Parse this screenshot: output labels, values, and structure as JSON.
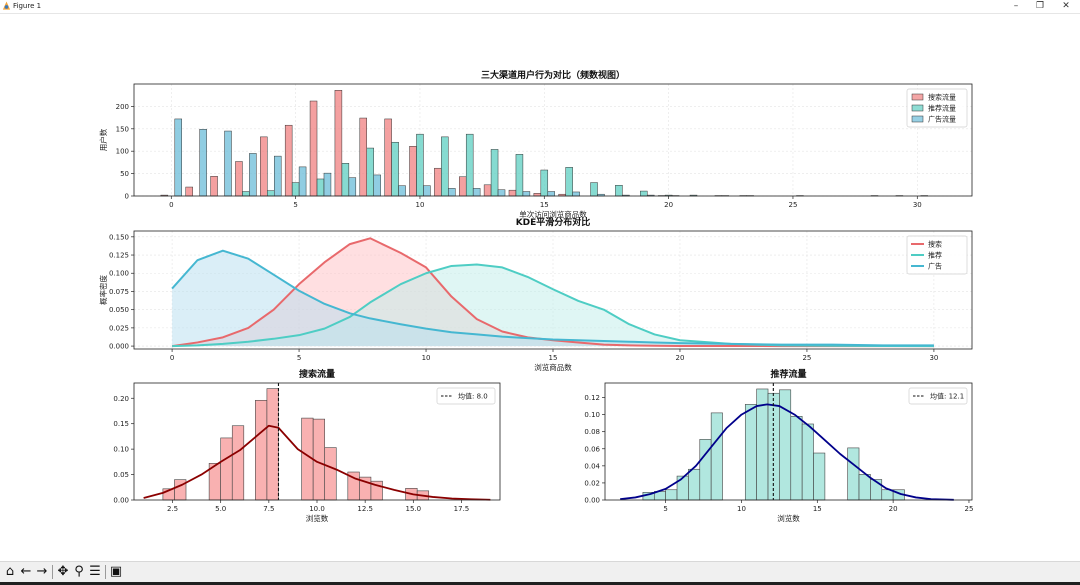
{
  "window": {
    "title": "Figure 1"
  },
  "toolbar": {
    "buttons": [
      {
        "name": "home-icon",
        "glyph": "⌂"
      },
      {
        "name": "back-icon",
        "glyph": "←"
      },
      {
        "name": "forward-icon",
        "glyph": "→"
      },
      {
        "name": "pan-icon",
        "glyph": "✥"
      },
      {
        "name": "zoom-icon",
        "glyph": "⚲"
      },
      {
        "name": "configure-icon",
        "glyph": "☰"
      },
      {
        "name": "save-icon",
        "glyph": "▣"
      }
    ]
  },
  "chart_data": [
    {
      "type": "bar",
      "title": "三大渠道用户行为对比（频数视图）",
      "xlabel": "单次访问浏览商品数",
      "ylabel": "用户数",
      "xlim": [
        -1.5,
        32.2
      ],
      "ylim": [
        0,
        250
      ],
      "xticks": [
        0,
        5,
        10,
        15,
        20,
        25,
        30
      ],
      "yticks": [
        0,
        50,
        100,
        150,
        200
      ],
      "grid": true,
      "legend": "top-right",
      "x": [
        0,
        1,
        2,
        3,
        4,
        5,
        6,
        7,
        8,
        9,
        10,
        11,
        12,
        13,
        14,
        15,
        16,
        17,
        18,
        19,
        20,
        21,
        22,
        23,
        24,
        25,
        26,
        27,
        28,
        29,
        30
      ],
      "series": [
        {
          "name": "搜索流量",
          "color": "#f08080",
          "values": [
            2,
            20,
            44,
            77,
            132,
            158,
            212,
            236,
            174,
            172,
            111,
            62,
            43,
            25,
            13,
            6,
            4,
            0,
            0,
            0,
            1,
            0,
            0,
            0,
            0,
            0,
            0,
            0,
            0,
            0,
            0
          ]
        },
        {
          "name": "推荐流量",
          "color": "#5ecfc2",
          "values": [
            0,
            0,
            0,
            10,
            12,
            30,
            38,
            73,
            107,
            120,
            138,
            132,
            138,
            104,
            93,
            58,
            64,
            30,
            24,
            11,
            2,
            2,
            1,
            1,
            0,
            0,
            0,
            0,
            0,
            0,
            0
          ]
        },
        {
          "name": "广告流量",
          "color": "#6bbcd8",
          "values": [
            172,
            149,
            145,
            95,
            89,
            65,
            51,
            41,
            47,
            23,
            23,
            17,
            17,
            14,
            10,
            10,
            9,
            4,
            2,
            2,
            1,
            0,
            1,
            1,
            0,
            1,
            0,
            0,
            1,
            1,
            1
          ]
        }
      ]
    },
    {
      "type": "area",
      "title": "KDE平滑分布对比",
      "xlabel": "浏览商品数",
      "ylabel": "概率密度",
      "xlim": [
        -1.5,
        31.5
      ],
      "ylim": [
        -0.004,
        0.158
      ],
      "xticks": [
        0,
        5,
        10,
        15,
        20,
        25,
        30
      ],
      "yticks": [
        0.0,
        0.025,
        0.05,
        0.075,
        0.1,
        0.125,
        0.15
      ],
      "grid": true,
      "legend": "top-right",
      "x": [
        0,
        1,
        2,
        3,
        4,
        5,
        6,
        7,
        7.8,
        9,
        10,
        11,
        12,
        13,
        14,
        15,
        16,
        17,
        18,
        19,
        20,
        22,
        24,
        26,
        28,
        30
      ],
      "series": [
        {
          "name": "搜索",
          "color": "#e8696c",
          "fill": "#ffc0c4",
          "values": [
            0.0,
            0.005,
            0.012,
            0.025,
            0.05,
            0.085,
            0.115,
            0.14,
            0.148,
            0.128,
            0.108,
            0.068,
            0.037,
            0.02,
            0.012,
            0.008,
            0.005,
            0.002,
            0.001,
            0.0005,
            0.0002,
            0.0001,
            0,
            0,
            0,
            0
          ]
        },
        {
          "name": "推荐",
          "color": "#4ecdc4",
          "fill": "#bfeeea",
          "values": [
            0.0,
            0.001,
            0.003,
            0.006,
            0.01,
            0.015,
            0.024,
            0.04,
            0.06,
            0.085,
            0.1,
            0.11,
            0.112,
            0.108,
            0.095,
            0.078,
            0.062,
            0.05,
            0.03,
            0.016,
            0.008,
            0.003,
            0.001,
            0.0005,
            0.0002,
            0
          ]
        },
        {
          "name": "广告",
          "color": "#45b7d1",
          "fill": "#b6def0",
          "values": [
            0.079,
            0.118,
            0.131,
            0.12,
            0.098,
            0.076,
            0.058,
            0.045,
            0.038,
            0.03,
            0.024,
            0.019,
            0.016,
            0.013,
            0.011,
            0.009,
            0.008,
            0.007,
            0.006,
            0.005,
            0.004,
            0.003,
            0.002,
            0.002,
            0.001,
            0.001
          ]
        }
      ]
    },
    {
      "type": "bar",
      "title": "搜索流量",
      "xlabel": "浏览数",
      "ylabel": "",
      "xlim": [
        0.5,
        19.5
      ],
      "ylim": [
        0,
        0.23
      ],
      "xticks": [
        2.5,
        5.0,
        7.5,
        10.0,
        12.5,
        15.0,
        17.5
      ],
      "yticks": [
        0.0,
        0.05,
        0.1,
        0.15,
        0.2
      ],
      "legend": "top-right",
      "bin_width": 0.6,
      "bins": [
        2.0,
        2.6,
        3.2,
        3.8,
        4.4,
        5.0,
        5.6,
        6.2,
        6.8,
        7.4,
        8.0,
        8.6,
        9.2,
        9.8,
        10.4,
        11.0,
        11.6,
        12.2,
        12.8,
        13.4,
        14.0,
        14.6,
        15.2,
        15.8,
        16.4,
        17.0,
        17.6
      ],
      "values": [
        0.022,
        0.04,
        0,
        0,
        0.072,
        0.122,
        0.146,
        0,
        0.196,
        0.219,
        0,
        0,
        0.161,
        0.159,
        0.103,
        0,
        0.055,
        0.045,
        0.037,
        0,
        0,
        0.023,
        0.018,
        0,
        0,
        0,
        0
      ],
      "kde_x": [
        1,
        2,
        3,
        4,
        5,
        6,
        7,
        7.5,
        8,
        9,
        10,
        11,
        12,
        13,
        14,
        15,
        16,
        17,
        18,
        19
      ],
      "kde_y": [
        0.004,
        0.014,
        0.03,
        0.05,
        0.075,
        0.098,
        0.13,
        0.146,
        0.142,
        0.1,
        0.075,
        0.06,
        0.042,
        0.03,
        0.02,
        0.011,
        0.006,
        0.003,
        0.0015,
        0.0005
      ],
      "kde_color": "#8b0000",
      "bar_color": "#f8a8a8",
      "mean": 8.0,
      "mean_label": "均值: 8.0"
    },
    {
      "type": "bar",
      "title": "推荐流量",
      "xlabel": "浏览数",
      "ylabel": "",
      "xlim": [
        1.0,
        25.2
      ],
      "ylim": [
        0,
        0.137
      ],
      "xticks": [
        5,
        10,
        15,
        20,
        25
      ],
      "yticks": [
        0.0,
        0.02,
        0.04,
        0.06,
        0.08,
        0.1,
        0.12
      ],
      "legend": "top-right",
      "bin_width": 0.75,
      "bins": [
        3.5,
        4.25,
        5.0,
        5.75,
        6.5,
        7.25,
        8.0,
        8.75,
        9.5,
        10.25,
        11.0,
        11.75,
        12.5,
        13.25,
        14.0,
        14.75,
        15.5,
        16.25,
        17.0,
        17.75,
        18.5,
        19.25,
        20.0,
        20.75
      ],
      "values": [
        0.009,
        0.01,
        0.012,
        0.028,
        0.036,
        0.071,
        0.102,
        0,
        0,
        0.112,
        0.13,
        0.125,
        0.129,
        0.098,
        0.089,
        0.055,
        0,
        0,
        0.061,
        0.03,
        0.024,
        0.012,
        0.012,
        0
      ],
      "kde_x": [
        2,
        3,
        4,
        5,
        6,
        7,
        8,
        9,
        10,
        11,
        11.7,
        12.5,
        13.5,
        14.5,
        15.5,
        16.5,
        17.5,
        18.5,
        19.5,
        20.5,
        21.5,
        22.5,
        24
      ],
      "kde_y": [
        0.001,
        0.003,
        0.007,
        0.013,
        0.024,
        0.04,
        0.062,
        0.084,
        0.1,
        0.11,
        0.112,
        0.11,
        0.1,
        0.086,
        0.07,
        0.054,
        0.04,
        0.026,
        0.014,
        0.007,
        0.003,
        0.001,
        0.0002
      ],
      "kde_color": "#00008b",
      "bar_color": "#a8e4dc",
      "mean": 12.1,
      "mean_label": "均值: 12.1"
    }
  ]
}
